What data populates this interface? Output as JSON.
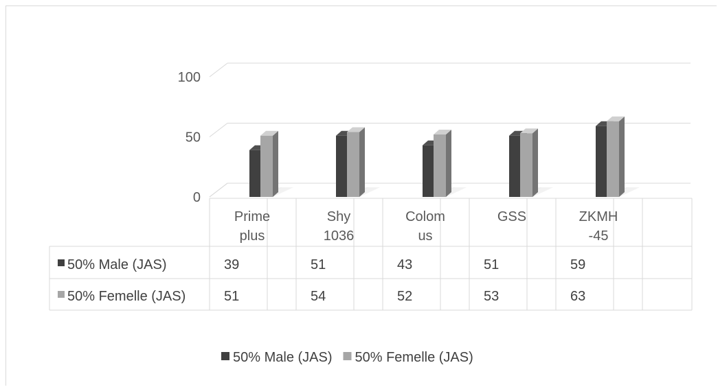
{
  "chart_data": {
    "type": "bar",
    "title": "",
    "xlabel": "",
    "ylabel": "",
    "ylim": [
      0,
      100
    ],
    "yticks": [
      0,
      50,
      100
    ],
    "categories": [
      [
        "Prime",
        "plus"
      ],
      [
        "Shy",
        "1036"
      ],
      [
        "Colom",
        "us"
      ],
      [
        "GSS"
      ],
      [
        "ZKMH",
        "-45"
      ]
    ],
    "series": [
      {
        "name": "50% Male (JAS)",
        "values": [
          39,
          51,
          43,
          51,
          59
        ],
        "color": "#404040"
      },
      {
        "name": "50% Femelle (JAS)",
        "values": [
          51,
          54,
          52,
          53,
          63
        ],
        "color": "#a6a6a6"
      }
    ],
    "data_table": true,
    "legend_position": "bottom",
    "grid": true,
    "style": "3d-clustered-column"
  }
}
